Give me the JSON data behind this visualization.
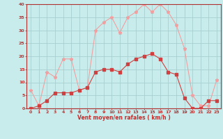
{
  "x": [
    0,
    1,
    2,
    3,
    4,
    5,
    6,
    7,
    8,
    9,
    10,
    11,
    12,
    13,
    14,
    15,
    16,
    17,
    18,
    19,
    20,
    21,
    22,
    23
  ],
  "wind_mean": [
    0,
    1,
    3,
    6,
    6,
    6,
    7,
    8,
    14,
    15,
    15,
    14,
    17,
    19,
    20,
    21,
    19,
    14,
    13,
    4,
    0,
    0,
    3,
    3
  ],
  "wind_gust": [
    7,
    1,
    14,
    12,
    19,
    19,
    7,
    8,
    30,
    33,
    35,
    29,
    35,
    37,
    40,
    37,
    40,
    37,
    32,
    23,
    5,
    1,
    1,
    11
  ],
  "xlabel": "Vent moyen/en rafales ( km/h )",
  "xlim": [
    -0.5,
    23.5
  ],
  "ylim": [
    0,
    40
  ],
  "yticks": [
    0,
    5,
    10,
    15,
    20,
    25,
    30,
    35,
    40
  ],
  "xticks": [
    0,
    1,
    2,
    3,
    4,
    5,
    6,
    7,
    8,
    9,
    10,
    11,
    12,
    13,
    14,
    15,
    16,
    17,
    18,
    19,
    20,
    21,
    22,
    23
  ],
  "mean_color": "#d04040",
  "gust_color": "#f0a0a0",
  "bg_color": "#c8ecec",
  "grid_color": "#a8d0d0",
  "axis_color": "#b03030",
  "text_color": "#c03030"
}
